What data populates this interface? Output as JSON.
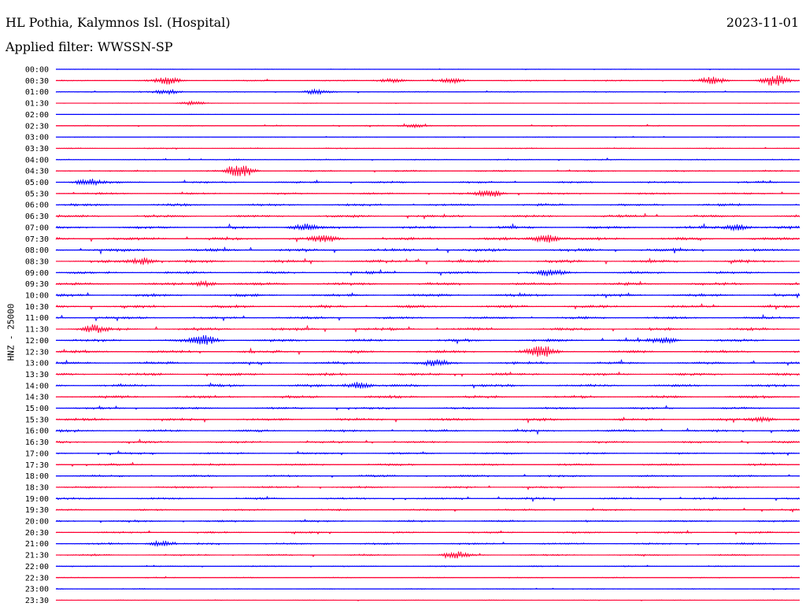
{
  "header": {
    "station": "HL Pothia, Kalymnos Isl. (Hospital)",
    "date": "2023-11-01",
    "filter": "Applied filter: WWSSN-SP"
  },
  "axis": {
    "ylabel": "HNZ - 25000"
  },
  "chart_data": {
    "type": "line",
    "title": "HL Pothia, Kalymnos Isl. (Hospital)",
    "subtitle": "Applied filter: WWSSN-SP",
    "ylabel": "HNZ - 25000",
    "xlabel": "",
    "rows": [
      {
        "label": "00:00",
        "color": "#0000ff",
        "noise": 0.15
      },
      {
        "label": "00:30",
        "color": "#ff0033",
        "noise": 0.35
      },
      {
        "label": "01:00",
        "color": "#0000ff",
        "noise": 0.3
      },
      {
        "label": "01:30",
        "color": "#ff0033",
        "noise": 0.15
      },
      {
        "label": "02:00",
        "color": "#0000ff",
        "noise": 0.1
      },
      {
        "label": "02:30",
        "color": "#ff0033",
        "noise": 0.3
      },
      {
        "label": "03:00",
        "color": "#0000ff",
        "noise": 0.2
      },
      {
        "label": "03:30",
        "color": "#ff0033",
        "noise": 0.3
      },
      {
        "label": "04:00",
        "color": "#0000ff",
        "noise": 0.35
      },
      {
        "label": "04:30",
        "color": "#ff0033",
        "noise": 0.45
      },
      {
        "label": "05:00",
        "color": "#0000ff",
        "noise": 0.55
      },
      {
        "label": "05:30",
        "color": "#ff0033",
        "noise": 0.55
      },
      {
        "label": "06:00",
        "color": "#0000ff",
        "noise": 0.7
      },
      {
        "label": "06:30",
        "color": "#ff0033",
        "noise": 0.75
      },
      {
        "label": "07:00",
        "color": "#0000ff",
        "noise": 0.8
      },
      {
        "label": "07:30",
        "color": "#ff0033",
        "noise": 0.85
      },
      {
        "label": "08:00",
        "color": "#0000ff",
        "noise": 0.85
      },
      {
        "label": "08:30",
        "color": "#ff0033",
        "noise": 0.85
      },
      {
        "label": "09:00",
        "color": "#0000ff",
        "noise": 0.75
      },
      {
        "label": "09:30",
        "color": "#ff0033",
        "noise": 0.8
      },
      {
        "label": "10:00",
        "color": "#0000ff",
        "noise": 0.8
      },
      {
        "label": "10:30",
        "color": "#ff0033",
        "noise": 0.8
      },
      {
        "label": "11:00",
        "color": "#0000ff",
        "noise": 0.75
      },
      {
        "label": "11:30",
        "color": "#ff0033",
        "noise": 0.8
      },
      {
        "label": "12:00",
        "color": "#0000ff",
        "noise": 0.8
      },
      {
        "label": "12:30",
        "color": "#ff0033",
        "noise": 0.8
      },
      {
        "label": "13:00",
        "color": "#0000ff",
        "noise": 0.75
      },
      {
        "label": "13:30",
        "color": "#ff0033",
        "noise": 0.8
      },
      {
        "label": "14:00",
        "color": "#0000ff",
        "noise": 0.75
      },
      {
        "label": "14:30",
        "color": "#ff0033",
        "noise": 0.8
      },
      {
        "label": "15:00",
        "color": "#0000ff",
        "noise": 0.6
      },
      {
        "label": "15:30",
        "color": "#ff0033",
        "noise": 0.75
      },
      {
        "label": "16:00",
        "color": "#0000ff",
        "noise": 0.7
      },
      {
        "label": "16:30",
        "color": "#ff0033",
        "noise": 0.6
      },
      {
        "label": "17:00",
        "color": "#0000ff",
        "noise": 0.55
      },
      {
        "label": "17:30",
        "color": "#ff0033",
        "noise": 0.6
      },
      {
        "label": "18:00",
        "color": "#0000ff",
        "noise": 0.6
      },
      {
        "label": "18:30",
        "color": "#ff0033",
        "noise": 0.55
      },
      {
        "label": "19:00",
        "color": "#0000ff",
        "noise": 0.6
      },
      {
        "label": "19:30",
        "color": "#ff0033",
        "noise": 0.5
      },
      {
        "label": "20:00",
        "color": "#0000ff",
        "noise": 0.55
      },
      {
        "label": "20:30",
        "color": "#ff0033",
        "noise": 0.5
      },
      {
        "label": "21:00",
        "color": "#0000ff",
        "noise": 0.55
      },
      {
        "label": "21:30",
        "color": "#ff0033",
        "noise": 0.5
      },
      {
        "label": "22:00",
        "color": "#0000ff",
        "noise": 0.35
      },
      {
        "label": "22:30",
        "color": "#ff0033",
        "noise": 0.3
      },
      {
        "label": "23:00",
        "color": "#0000ff",
        "noise": 0.25
      },
      {
        "label": "23:30",
        "color": "#ff0033",
        "noise": 0.2
      }
    ],
    "events": [
      {
        "row": "00:30",
        "minute": 4.5,
        "amplitude": 3
      },
      {
        "row": "00:30",
        "minute": 16,
        "amplitude": 2
      },
      {
        "row": "00:30",
        "minute": 13.5,
        "amplitude": 2
      },
      {
        "row": "00:30",
        "minute": 26.5,
        "amplitude": 3
      },
      {
        "row": "00:30",
        "minute": 29,
        "amplitude": 5
      },
      {
        "row": "01:00",
        "minute": 4.5,
        "amplitude": 2
      },
      {
        "row": "01:00",
        "minute": 10.5,
        "amplitude": 2
      },
      {
        "row": "01:30",
        "minute": 5.5,
        "amplitude": 1.5
      },
      {
        "row": "02:30",
        "minute": 14.5,
        "amplitude": 1.5
      },
      {
        "row": "04:30",
        "minute": 7.4,
        "amplitude": 7
      },
      {
        "row": "05:00",
        "minute": 1.3,
        "amplitude": 3
      },
      {
        "row": "05:30",
        "minute": 17.5,
        "amplitude": 3
      },
      {
        "row": "07:00",
        "minute": 10,
        "amplitude": 3
      },
      {
        "row": "07:00",
        "minute": 27.5,
        "amplitude": 2.5
      },
      {
        "row": "07:30",
        "minute": 10.8,
        "amplitude": 2.5
      },
      {
        "row": "07:30",
        "minute": 19.8,
        "amplitude": 4
      },
      {
        "row": "08:30",
        "minute": 3.5,
        "amplitude": 3
      },
      {
        "row": "09:00",
        "minute": 20,
        "amplitude": 2.5
      },
      {
        "row": "09:30",
        "minute": 6,
        "amplitude": 2
      },
      {
        "row": "11:30",
        "minute": 1.5,
        "amplitude": 3
      },
      {
        "row": "12:00",
        "minute": 6,
        "amplitude": 4
      },
      {
        "row": "12:00",
        "minute": 24.5,
        "amplitude": 2
      },
      {
        "row": "12:30",
        "minute": 19.6,
        "amplitude": 6
      },
      {
        "row": "13:00",
        "minute": 15.3,
        "amplitude": 2.5
      },
      {
        "row": "14:00",
        "minute": 12.2,
        "amplitude": 3
      },
      {
        "row": "15:30",
        "minute": 28.5,
        "amplitude": 2
      },
      {
        "row": "21:00",
        "minute": 4.3,
        "amplitude": 2.5
      },
      {
        "row": "21:30",
        "minute": 16.2,
        "amplitude": 2.5
      }
    ]
  }
}
